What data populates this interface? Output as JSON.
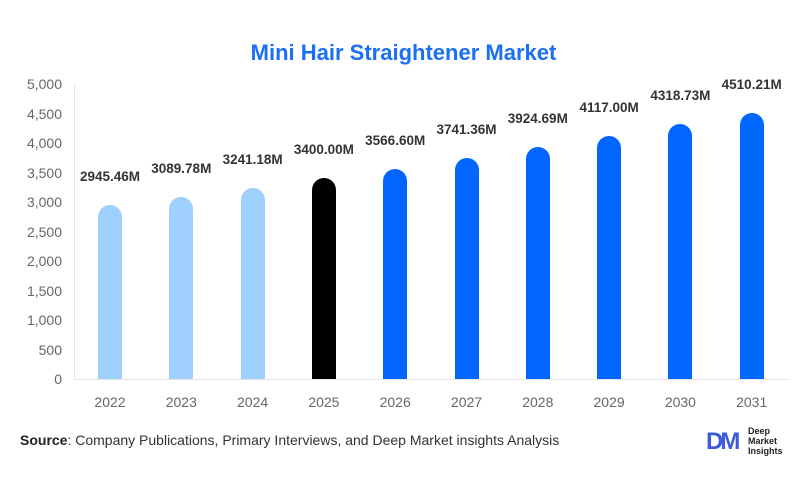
{
  "chart_data": {
    "type": "bar",
    "title": "Mini Hair Straightener Market",
    "xlabel": "",
    "ylabel": "",
    "ylim": [
      0,
      5000
    ],
    "yticks": [
      0,
      500,
      1000,
      1500,
      2000,
      2500,
      3000,
      3500,
      4000,
      4500,
      5000
    ],
    "ytick_labels": [
      "0",
      "500",
      "1,000",
      "1,500",
      "2,000",
      "2,500",
      "3,000",
      "3,500",
      "4,000",
      "4,500",
      "5,000"
    ],
    "grid": false,
    "legend": null,
    "categories": [
      "2022",
      "2023",
      "2024",
      "2025",
      "2026",
      "2027",
      "2028",
      "2029",
      "2030",
      "2031"
    ],
    "values": [
      2945.46,
      3089.78,
      3241.18,
      3400.0,
      3566.6,
      3741.36,
      3924.69,
      4117.0,
      4318.73,
      4510.21
    ],
    "value_labels": [
      "2945.46M",
      "3089.78M",
      "3241.18M",
      "3400.00M",
      "3566.60M",
      "3741.36M",
      "3924.69M",
      "4117.00M",
      "4318.73M",
      "4510.21M"
    ],
    "bar_colors": [
      "#9fcfff",
      "#9fcfff",
      "#9fcfff",
      "#000000",
      "#0066ff",
      "#0066ff",
      "#0066ff",
      "#0066ff",
      "#0066ff",
      "#0066ff"
    ],
    "segments": {
      "historical": "#9fcfff",
      "base_year": "#000000",
      "forecast": "#0066ff"
    }
  },
  "colors": {
    "title": "#1a6ff5"
  },
  "footer": {
    "source_label": "Source",
    "source_text": ": Company Publications, Primary Interviews, and Deep Market insights Analysis",
    "logo_mark": "DM",
    "logo_lines": [
      "Deep",
      "Market",
      "Insights"
    ]
  }
}
